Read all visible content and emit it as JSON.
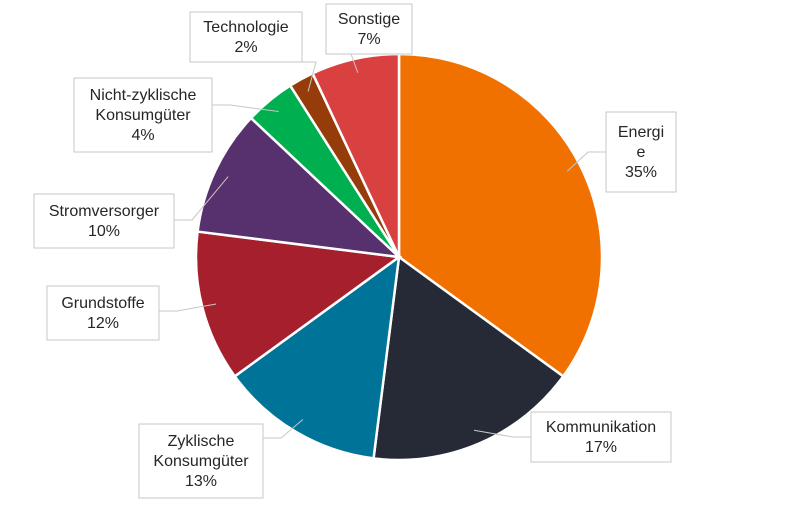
{
  "chart_data": {
    "type": "pie",
    "slices": [
      {
        "name": "Energie",
        "value": 35,
        "label_lines": [
          "Energi",
          "e"
        ],
        "pct": "35%",
        "color": "#F07000"
      },
      {
        "name": "Kommunikation",
        "value": 17,
        "label_lines": [
          "Kommunikation"
        ],
        "pct": "17%",
        "color": "#262A36"
      },
      {
        "name": "Zyklische Konsumgüter",
        "value": 13,
        "label_lines": [
          "Zyklische",
          "Konsumgüter"
        ],
        "pct": "13%",
        "color": "#007399"
      },
      {
        "name": "Grundstoffe",
        "value": 12,
        "label_lines": [
          "Grundstoffe"
        ],
        "pct": "12%",
        "color": "#A51F2D"
      },
      {
        "name": "Stromversorger",
        "value": 10,
        "label_lines": [
          "Stromversorger"
        ],
        "pct": "10%",
        "color": "#57306E"
      },
      {
        "name": "Nicht-zyklische Konsumgüter",
        "value": 4,
        "label_lines": [
          "Nicht-zyklische",
          "Konsumgüter"
        ],
        "pct": "4%",
        "color": "#00B050"
      },
      {
        "name": "Technologie",
        "value": 2,
        "label_lines": [
          "Technologie"
        ],
        "pct": "2%",
        "color": "#963C0A"
      },
      {
        "name": "Sonstige",
        "value": 7,
        "label_lines": [
          "Sonstige"
        ],
        "pct": "7%",
        "color": "#D94141"
      }
    ]
  }
}
